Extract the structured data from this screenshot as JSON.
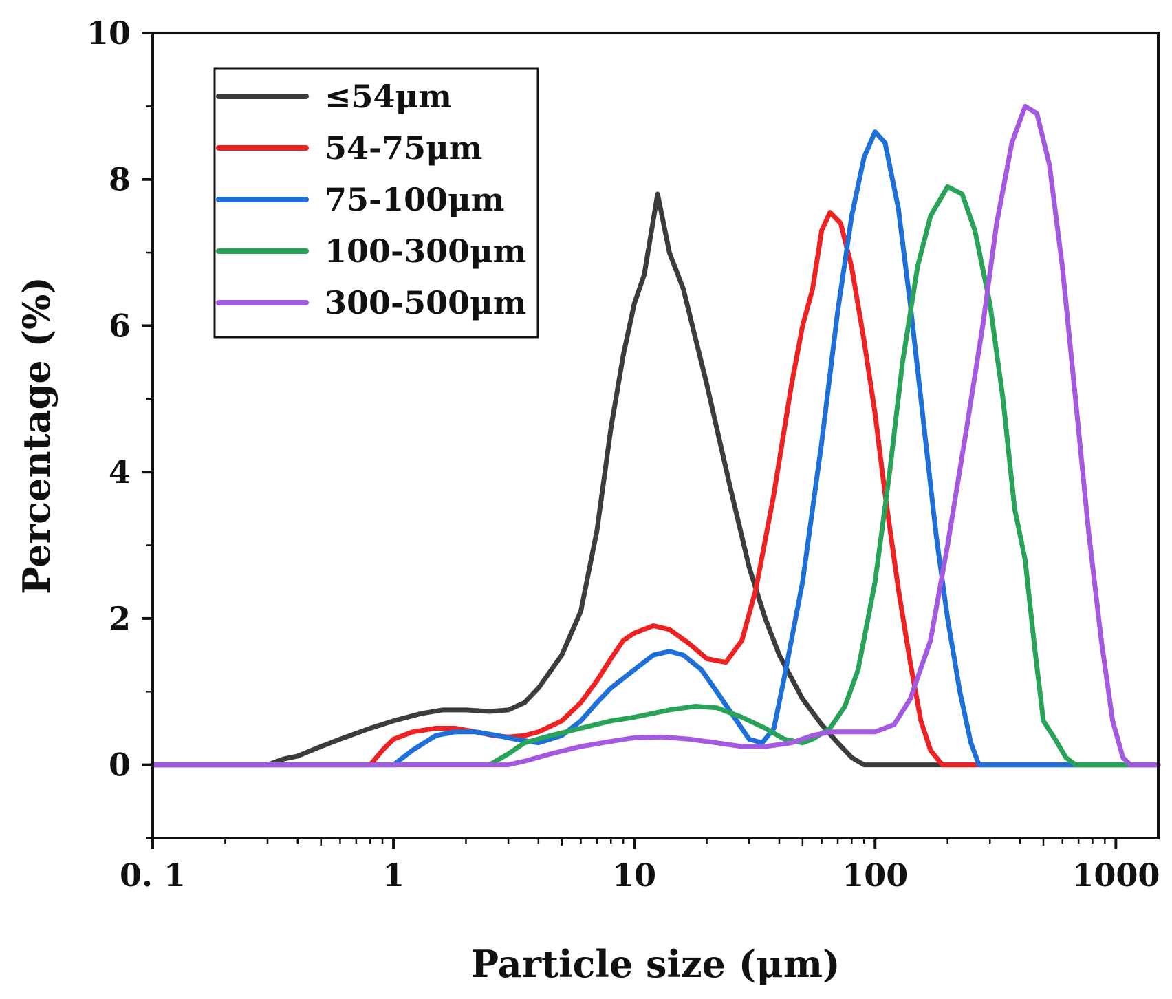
{
  "chart_data": {
    "type": "line",
    "title": "",
    "xlabel": "Particle size (μm)",
    "ylabel": "Percentage (%)",
    "xscale": "log",
    "xlim": [
      0.1,
      1500
    ],
    "ylim": [
      -1,
      10
    ],
    "xticks": [
      {
        "value": 0.1,
        "label": "0. 1"
      },
      {
        "value": 1,
        "label": "1"
      },
      {
        "value": 10,
        "label": "10"
      },
      {
        "value": 100,
        "label": "100"
      },
      {
        "value": 1000,
        "label": "1000"
      }
    ],
    "yticks": [
      {
        "value": 0,
        "label": "0"
      },
      {
        "value": 2,
        "label": "2"
      },
      {
        "value": 4,
        "label": "4"
      },
      {
        "value": 6,
        "label": "6"
      },
      {
        "value": 8,
        "label": "8"
      },
      {
        "value": 10,
        "label": "10"
      }
    ],
    "grid": false,
    "legend": {
      "position": "top-left"
    },
    "series": [
      {
        "name": "≤54μm",
        "color": "#3c3c3c",
        "points": [
          [
            0.1,
            0
          ],
          [
            0.3,
            0
          ],
          [
            0.35,
            0.08
          ],
          [
            0.4,
            0.12
          ],
          [
            0.5,
            0.25
          ],
          [
            0.6,
            0.35
          ],
          [
            0.8,
            0.5
          ],
          [
            1.0,
            0.6
          ],
          [
            1.3,
            0.7
          ],
          [
            1.6,
            0.75
          ],
          [
            2.0,
            0.75
          ],
          [
            2.5,
            0.73
          ],
          [
            3.0,
            0.75
          ],
          [
            3.5,
            0.85
          ],
          [
            4.0,
            1.05
          ],
          [
            5.0,
            1.5
          ],
          [
            6.0,
            2.1
          ],
          [
            7.0,
            3.2
          ],
          [
            8.0,
            4.6
          ],
          [
            9.0,
            5.6
          ],
          [
            10.0,
            6.3
          ],
          [
            11.0,
            6.7
          ],
          [
            12.5,
            7.8
          ],
          [
            14.0,
            7.0
          ],
          [
            16.0,
            6.5
          ],
          [
            20.0,
            5.2
          ],
          [
            25.0,
            3.8
          ],
          [
            30.0,
            2.7
          ],
          [
            35.0,
            2.0
          ],
          [
            40.0,
            1.5
          ],
          [
            50.0,
            0.9
          ],
          [
            60.0,
            0.55
          ],
          [
            70.0,
            0.3
          ],
          [
            80.0,
            0.1
          ],
          [
            90.0,
            0
          ],
          [
            1500,
            0
          ]
        ]
      },
      {
        "name": "54-75μm",
        "color": "#ee2222",
        "points": [
          [
            0.1,
            0
          ],
          [
            0.8,
            0
          ],
          [
            0.9,
            0.2
          ],
          [
            1.0,
            0.35
          ],
          [
            1.2,
            0.45
          ],
          [
            1.5,
            0.5
          ],
          [
            1.8,
            0.5
          ],
          [
            2.2,
            0.45
          ],
          [
            2.6,
            0.4
          ],
          [
            3.0,
            0.38
          ],
          [
            3.5,
            0.4
          ],
          [
            4.0,
            0.45
          ],
          [
            5.0,
            0.6
          ],
          [
            6.0,
            0.85
          ],
          [
            7.0,
            1.15
          ],
          [
            8.0,
            1.45
          ],
          [
            9.0,
            1.7
          ],
          [
            10.0,
            1.8
          ],
          [
            12.0,
            1.9
          ],
          [
            14.0,
            1.85
          ],
          [
            17.0,
            1.65
          ],
          [
            20.0,
            1.45
          ],
          [
            24.0,
            1.4
          ],
          [
            28.0,
            1.7
          ],
          [
            32.0,
            2.4
          ],
          [
            38.0,
            3.7
          ],
          [
            45.0,
            5.2
          ],
          [
            50.0,
            6.0
          ],
          [
            55.0,
            6.5
          ],
          [
            60.0,
            7.3
          ],
          [
            65.0,
            7.55
          ],
          [
            72.0,
            7.4
          ],
          [
            80.0,
            6.8
          ],
          [
            90.0,
            5.8
          ],
          [
            100.0,
            4.8
          ],
          [
            110.0,
            3.7
          ],
          [
            125.0,
            2.4
          ],
          [
            140.0,
            1.4
          ],
          [
            155.0,
            0.6
          ],
          [
            170.0,
            0.2
          ],
          [
            190.0,
            0
          ],
          [
            1500,
            0
          ]
        ]
      },
      {
        "name": "75-100μm",
        "color": "#1f6fdb",
        "points": [
          [
            0.1,
            0
          ],
          [
            1.0,
            0
          ],
          [
            1.2,
            0.2
          ],
          [
            1.5,
            0.4
          ],
          [
            1.8,
            0.45
          ],
          [
            2.2,
            0.45
          ],
          [
            2.7,
            0.4
          ],
          [
            3.2,
            0.35
          ],
          [
            4.0,
            0.3
          ],
          [
            5.0,
            0.4
          ],
          [
            6.0,
            0.6
          ],
          [
            7.0,
            0.85
          ],
          [
            8.0,
            1.05
          ],
          [
            10.0,
            1.3
          ],
          [
            12.0,
            1.5
          ],
          [
            14.0,
            1.55
          ],
          [
            16.0,
            1.5
          ],
          [
            19.0,
            1.3
          ],
          [
            22.0,
            1.0
          ],
          [
            26.0,
            0.65
          ],
          [
            30.0,
            0.35
          ],
          [
            34.0,
            0.3
          ],
          [
            38.0,
            0.5
          ],
          [
            42.0,
            1.2
          ],
          [
            50.0,
            2.5
          ],
          [
            60.0,
            4.4
          ],
          [
            70.0,
            6.2
          ],
          [
            80.0,
            7.5
          ],
          [
            90.0,
            8.3
          ],
          [
            100.0,
            8.65
          ],
          [
            110.0,
            8.5
          ],
          [
            125.0,
            7.6
          ],
          [
            140.0,
            6.3
          ],
          [
            160.0,
            4.6
          ],
          [
            180.0,
            3.1
          ],
          [
            200.0,
            2.0
          ],
          [
            225.0,
            1.0
          ],
          [
            250.0,
            0.3
          ],
          [
            270.0,
            0
          ],
          [
            1500,
            0
          ]
        ]
      },
      {
        "name": "100-300μm",
        "color": "#2aa35a",
        "points": [
          [
            0.1,
            0
          ],
          [
            2.5,
            0
          ],
          [
            3.0,
            0.15
          ],
          [
            3.5,
            0.3
          ],
          [
            4.5,
            0.4
          ],
          [
            6.0,
            0.5
          ],
          [
            8.0,
            0.6
          ],
          [
            10.0,
            0.65
          ],
          [
            14.0,
            0.75
          ],
          [
            18.0,
            0.8
          ],
          [
            22.0,
            0.78
          ],
          [
            28.0,
            0.65
          ],
          [
            35.0,
            0.5
          ],
          [
            42.0,
            0.35
          ],
          [
            50.0,
            0.3
          ],
          [
            55.0,
            0.35
          ],
          [
            65.0,
            0.5
          ],
          [
            75.0,
            0.8
          ],
          [
            85.0,
            1.3
          ],
          [
            100.0,
            2.5
          ],
          [
            115.0,
            4.0
          ],
          [
            130.0,
            5.5
          ],
          [
            150.0,
            6.8
          ],
          [
            170.0,
            7.5
          ],
          [
            200.0,
            7.9
          ],
          [
            230.0,
            7.8
          ],
          [
            260.0,
            7.3
          ],
          [
            300.0,
            6.3
          ],
          [
            340.0,
            5.0
          ],
          [
            380.0,
            3.5
          ],
          [
            420.0,
            2.8
          ],
          [
            460.0,
            1.6
          ],
          [
            500.0,
            0.6
          ],
          [
            560.0,
            0.35
          ],
          [
            620.0,
            0.1
          ],
          [
            680.0,
            0
          ],
          [
            1500,
            0
          ]
        ]
      },
      {
        "name": "300-500μm",
        "color": "#a35ae0",
        "points": [
          [
            0.1,
            0
          ],
          [
            3.0,
            0
          ],
          [
            3.5,
            0.05
          ],
          [
            4.5,
            0.15
          ],
          [
            6.0,
            0.25
          ],
          [
            8.0,
            0.32
          ],
          [
            10.0,
            0.37
          ],
          [
            13.0,
            0.38
          ],
          [
            17.0,
            0.35
          ],
          [
            22.0,
            0.3
          ],
          [
            28.0,
            0.25
          ],
          [
            35.0,
            0.25
          ],
          [
            45.0,
            0.3
          ],
          [
            55.0,
            0.4
          ],
          [
            65.0,
            0.45
          ],
          [
            80.0,
            0.45
          ],
          [
            100.0,
            0.45
          ],
          [
            120.0,
            0.55
          ],
          [
            140.0,
            0.9
          ],
          [
            170.0,
            1.7
          ],
          [
            200.0,
            3.0
          ],
          [
            240.0,
            4.6
          ],
          [
            280.0,
            6.0
          ],
          [
            320.0,
            7.4
          ],
          [
            370.0,
            8.5
          ],
          [
            420.0,
            9.0
          ],
          [
            470.0,
            8.9
          ],
          [
            530.0,
            8.2
          ],
          [
            600.0,
            6.8
          ],
          [
            680.0,
            5.0
          ],
          [
            770.0,
            3.2
          ],
          [
            870.0,
            1.7
          ],
          [
            970.0,
            0.6
          ],
          [
            1070.0,
            0.1
          ],
          [
            1150.0,
            0
          ],
          [
            1500,
            0
          ]
        ]
      }
    ]
  }
}
